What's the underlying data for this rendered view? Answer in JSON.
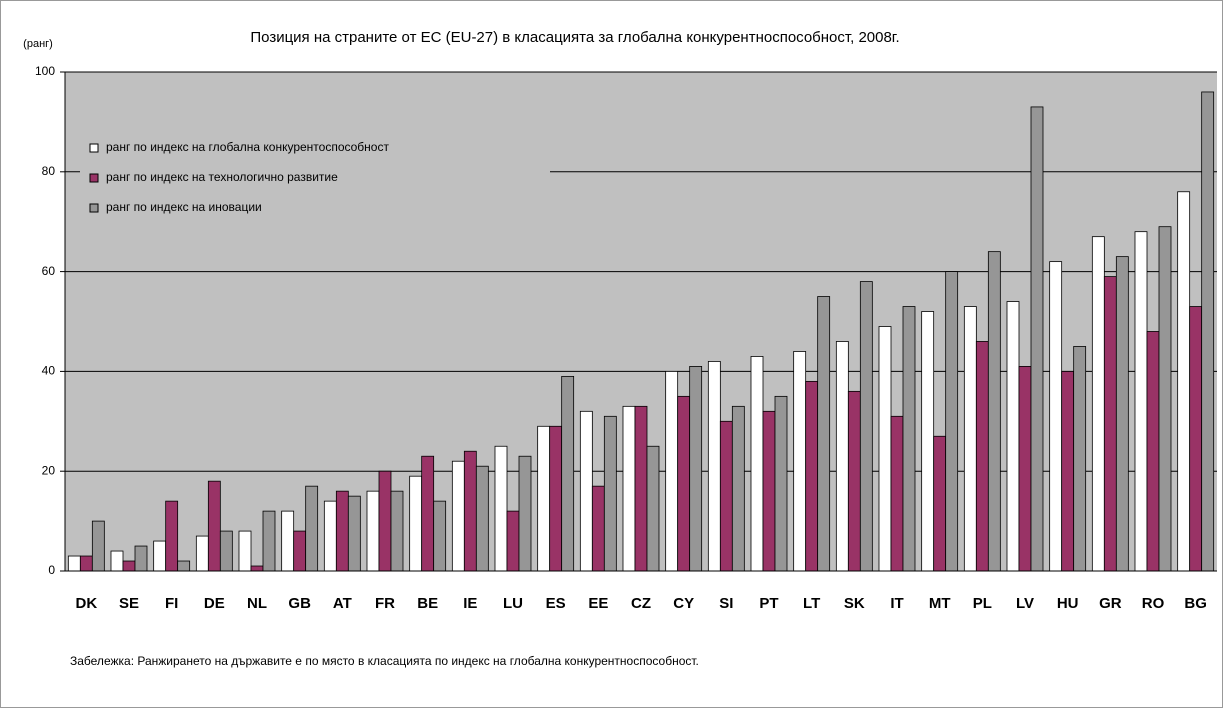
{
  "chart_data": {
    "type": "bar",
    "title": "Позиция на страните от ЕС (EU-27) в класацията за глобална конкурентноспособност, 2008г.",
    "y_label": "(ранг)",
    "note": "Забележка: Ранжирането на държавите е по място в класацията по индекс на глобална конкурентноспособност.",
    "categories": [
      "DK",
      "SE",
      "FI",
      "DE",
      "NL",
      "GB",
      "AT",
      "FR",
      "BE",
      "IE",
      "LU",
      "ES",
      "EE",
      "CZ",
      "CY",
      "SI",
      "PT",
      "LT",
      "SK",
      "IT",
      "MT",
      "PL",
      "LV",
      "HU",
      "GR",
      "RO",
      "BG"
    ],
    "series": [
      {
        "name": "ранг по индекс на глобална конкурентоспособност",
        "color": "#ffffff",
        "values": [
          3,
          4,
          6,
          7,
          8,
          12,
          14,
          16,
          19,
          22,
          25,
          29,
          32,
          33,
          40,
          42,
          43,
          44,
          46,
          49,
          52,
          53,
          54,
          62,
          67,
          68,
          76
        ]
      },
      {
        "name": "ранг по индекс на технологично развитие",
        "color": "#993366",
        "values": [
          3,
          2,
          14,
          18,
          1,
          8,
          16,
          20,
          23,
          24,
          12,
          29,
          17,
          33,
          35,
          30,
          32,
          38,
          36,
          31,
          27,
          46,
          41,
          40,
          59,
          48,
          53
        ]
      },
      {
        "name": "ранг по индекс на иновации",
        "color": "#969696",
        "values": [
          10,
          5,
          2,
          8,
          12,
          17,
          15,
          16,
          14,
          21,
          23,
          39,
          31,
          25,
          41,
          33,
          35,
          55,
          58,
          53,
          60,
          64,
          93,
          45,
          63,
          69,
          96
        ]
      }
    ],
    "ylim": [
      0,
      100
    ],
    "yticks": [
      0,
      20,
      40,
      60,
      80,
      100
    ],
    "grid": true,
    "legend": "upper left",
    "plot_background": "#c0c0c0"
  }
}
